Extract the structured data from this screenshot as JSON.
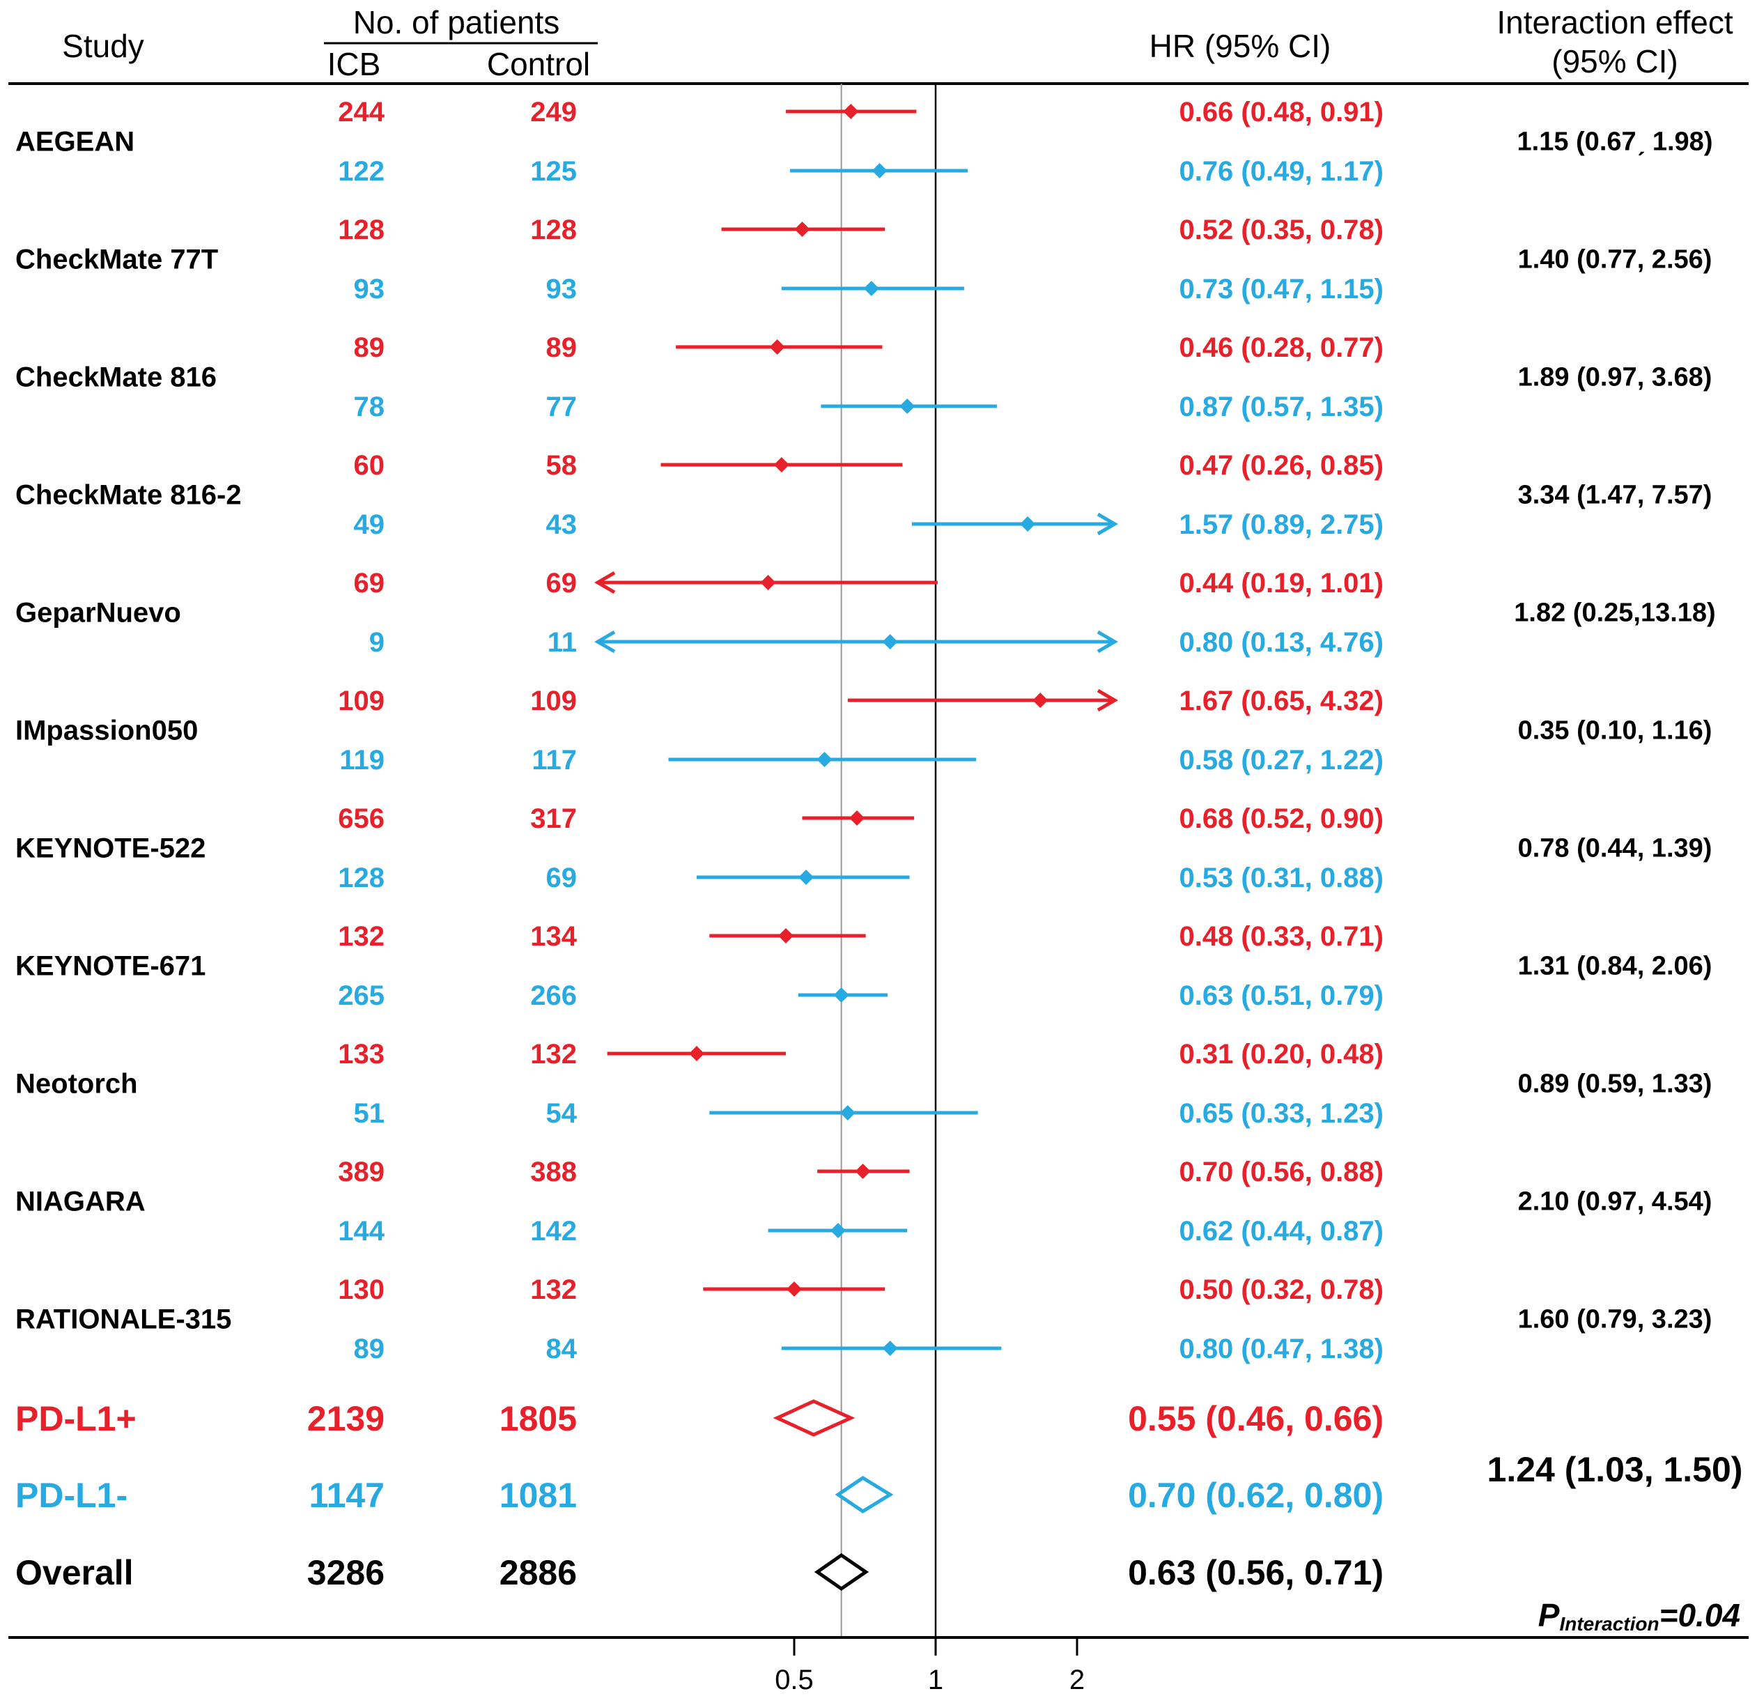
{
  "chart_data": {
    "type": "forest",
    "headers": {
      "study": "Study",
      "patients_group": "No. of patients",
      "icb": "ICB",
      "control": "Control",
      "hr": "HR (95% CI)",
      "interaction_line1": "Interaction effect",
      "interaction_line2": "(95% CI)"
    },
    "colors": {
      "pos": "#e8202a",
      "neg": "#27a9e1",
      "overall": "#000000",
      "refline": "#999999"
    },
    "x_axis": {
      "scale": "log",
      "ticks": [
        0.5,
        1,
        2
      ],
      "tick_labels": [
        "0.5",
        "1",
        "2"
      ],
      "reference": 1,
      "pooled_reference": 0.63
    },
    "studies": [
      {
        "name": "AEGEAN",
        "interaction": "1.15 (0.67ˏ 1.98)",
        "pos": {
          "icb": "244",
          "control": "249",
          "hr": 0.66,
          "lo": 0.48,
          "hi": 0.91,
          "label": "0.66 (0.48, 0.91)"
        },
        "neg": {
          "icb": "122",
          "control": "125",
          "hr": 0.76,
          "lo": 0.49,
          "hi": 1.17,
          "label": "0.76 (0.49, 1.17)"
        }
      },
      {
        "name": "CheckMate 77T",
        "interaction": "1.40 (0.77, 2.56)",
        "pos": {
          "icb": "128",
          "control": "128",
          "hr": 0.52,
          "lo": 0.35,
          "hi": 0.78,
          "label": "0.52 (0.35, 0.78)"
        },
        "neg": {
          "icb": "93",
          "control": "93",
          "hr": 0.73,
          "lo": 0.47,
          "hi": 1.15,
          "label": "0.73 (0.47, 1.15)"
        }
      },
      {
        "name": "CheckMate 816",
        "interaction": "1.89 (0.97, 3.68)",
        "pos": {
          "icb": "89",
          "control": "89",
          "hr": 0.46,
          "lo": 0.28,
          "hi": 0.77,
          "label": "0.46 (0.28, 0.77)"
        },
        "neg": {
          "icb": "78",
          "control": "77",
          "hr": 0.87,
          "lo": 0.57,
          "hi": 1.35,
          "label": "0.87 (0.57, 1.35)"
        }
      },
      {
        "name": "CheckMate 816-2",
        "interaction": "3.34 (1.47, 7.57)",
        "pos": {
          "icb": "60",
          "control": "58",
          "hr": 0.47,
          "lo": 0.26,
          "hi": 0.85,
          "label": "0.47 (0.26, 0.85)"
        },
        "neg": {
          "icb": "49",
          "control": "43",
          "hr": 1.57,
          "lo": 0.89,
          "hi": 2.75,
          "label": "1.57 (0.89, 2.75)"
        }
      },
      {
        "name": "GeparNuevo",
        "interaction": "1.82 (0.25,13.18)",
        "pos": {
          "icb": "69",
          "control": "69",
          "hr": 0.44,
          "lo": 0.19,
          "hi": 1.01,
          "label": "0.44 (0.19, 1.01)"
        },
        "neg": {
          "icb": "9",
          "control": "11",
          "hr": 0.8,
          "lo": 0.13,
          "hi": 4.76,
          "label": "0.80 (0.13, 4.76)"
        }
      },
      {
        "name": "IMpassion050",
        "interaction": "0.35 (0.10, 1.16)",
        "pos": {
          "icb": "109",
          "control": "109",
          "hr": 1.67,
          "lo": 0.65,
          "hi": 4.32,
          "label": "1.67 (0.65, 4.32)"
        },
        "neg": {
          "icb": "119",
          "control": "117",
          "hr": 0.58,
          "lo": 0.27,
          "hi": 1.22,
          "label": "0.58 (0.27, 1.22)"
        }
      },
      {
        "name": "KEYNOTE-522",
        "interaction": "0.78 (0.44, 1.39)",
        "pos": {
          "icb": "656",
          "control": "317",
          "hr": 0.68,
          "lo": 0.52,
          "hi": 0.9,
          "label": "0.68 (0.52, 0.90)"
        },
        "neg": {
          "icb": "128",
          "control": "69",
          "hr": 0.53,
          "lo": 0.31,
          "hi": 0.88,
          "label": "0.53 (0.31, 0.88)"
        }
      },
      {
        "name": "KEYNOTE-671",
        "interaction": "1.31 (0.84, 2.06)",
        "pos": {
          "icb": "132",
          "control": "134",
          "hr": 0.48,
          "lo": 0.33,
          "hi": 0.71,
          "label": "0.48 (0.33, 0.71)"
        },
        "neg": {
          "icb": "265",
          "control": "266",
          "hr": 0.63,
          "lo": 0.51,
          "hi": 0.79,
          "label": "0.63 (0.51, 0.79)"
        }
      },
      {
        "name": "Neotorch",
        "interaction": "0.89 (0.59, 1.33)",
        "pos": {
          "icb": "133",
          "control": "132",
          "hr": 0.31,
          "lo": 0.2,
          "hi": 0.48,
          "label": "0.31 (0.20, 0.48)"
        },
        "neg": {
          "icb": "51",
          "control": "54",
          "hr": 0.65,
          "lo": 0.33,
          "hi": 1.23,
          "label": "0.65 (0.33, 1.23)"
        }
      },
      {
        "name": "NIAGARA",
        "interaction": "2.10 (0.97, 4.54)",
        "pos": {
          "icb": "389",
          "control": "388",
          "hr": 0.7,
          "lo": 0.56,
          "hi": 0.88,
          "label": "0.70 (0.56, 0.88)"
        },
        "neg": {
          "icb": "144",
          "control": "142",
          "hr": 0.62,
          "lo": 0.44,
          "hi": 0.87,
          "label": "0.62 (0.44, 0.87)"
        }
      },
      {
        "name": "RATIONALE-315",
        "interaction": "1.60 (0.79, 3.23)",
        "pos": {
          "icb": "130",
          "control": "132",
          "hr": 0.5,
          "lo": 0.32,
          "hi": 0.78,
          "label": "0.50 (0.32, 0.78)"
        },
        "neg": {
          "icb": "89",
          "control": "84",
          "hr": 0.8,
          "lo": 0.47,
          "hi": 1.38,
          "label": "0.80 (0.47, 1.38)"
        }
      }
    ],
    "summary": [
      {
        "name": "PD-L1+",
        "group": "pos",
        "icb": "2139",
        "control": "1805",
        "hr": 0.55,
        "lo": 0.46,
        "hi": 0.66,
        "label": "0.55 (0.46, 0.66)"
      },
      {
        "name": "PD-L1-",
        "group": "neg",
        "icb": "1147",
        "control": "1081",
        "hr": 0.7,
        "lo": 0.62,
        "hi": 0.8,
        "label": "0.70 (0.62, 0.80)"
      },
      {
        "name": "Overall",
        "group": "overall",
        "icb": "3286",
        "control": "2886",
        "hr": 0.63,
        "lo": 0.56,
        "hi": 0.71,
        "label": "0.63 (0.56, 0.71)"
      }
    ],
    "pooled_interaction": "1.24 (1.03, 1.50)",
    "p_interaction": {
      "prefix": "P",
      "subscript": "Interaction",
      "value": "=0.04"
    }
  }
}
